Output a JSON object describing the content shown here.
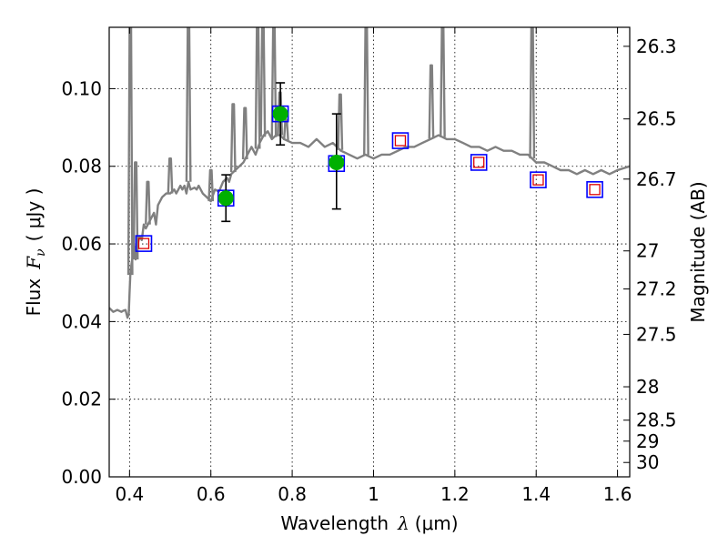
{
  "chart_data": {
    "type": "line",
    "title": "",
    "xlabel_text": "Wavelength",
    "xlabel_math": "λ",
    "xlabel_unit": "(μm)",
    "ylabel_text": "Flux",
    "ylabel_math": "F",
    "ylabel_sub": "ν",
    "ylabel_unit": "( μJy )",
    "y2label": "Magnitude (AB)",
    "xlim": [
      0.35,
      1.63
    ],
    "ylim": [
      0.0,
      0.1158
    ],
    "grid": true,
    "x_ticks": [
      {
        "value": 0.4,
        "label": "0.4"
      },
      {
        "value": 0.6,
        "label": "0.6"
      },
      {
        "value": 0.8,
        "label": "0.8"
      },
      {
        "value": 1.0,
        "label": "1"
      },
      {
        "value": 1.2,
        "label": "1.2"
      },
      {
        "value": 1.4,
        "label": "1.4"
      },
      {
        "value": 1.6,
        "label": "1.6"
      }
    ],
    "y_ticks": [
      {
        "value": 0.0,
        "label": "0.00"
      },
      {
        "value": 0.02,
        "label": "0.02"
      },
      {
        "value": 0.04,
        "label": "0.04"
      },
      {
        "value": 0.06,
        "label": "0.06"
      },
      {
        "value": 0.08,
        "label": "0.08"
      },
      {
        "value": 0.1,
        "label": "0.10"
      }
    ],
    "y2_ticks": [
      {
        "label": "26.3",
        "flux": 0.1109
      },
      {
        "label": "26.5",
        "flux": 0.0922
      },
      {
        "label": "26.7",
        "flux": 0.0767
      },
      {
        "label": "27",
        "flux": 0.0582
      },
      {
        "label": "27.2",
        "flux": 0.0484
      },
      {
        "label": "27.5",
        "flux": 0.0367
      },
      {
        "label": "28",
        "flux": 0.0232
      },
      {
        "label": "28.5",
        "flux": 0.0146
      },
      {
        "label": "29",
        "flux": 0.0092
      },
      {
        "label": "30",
        "flux": 0.0037
      }
    ],
    "series": [
      {
        "role": "sed-model",
        "color": "#808080",
        "x": [
          0.35,
          0.36,
          0.37,
          0.38,
          0.385,
          0.39,
          0.395,
          0.398,
          0.4,
          0.402,
          0.405,
          0.41,
          0.412,
          0.415,
          0.418,
          0.42,
          0.425,
          0.43,
          0.435,
          0.44,
          0.445,
          0.45,
          0.46,
          0.465,
          0.47,
          0.475,
          0.48,
          0.49,
          0.5,
          0.51,
          0.515,
          0.52,
          0.525,
          0.53,
          0.535,
          0.54,
          0.545,
          0.55,
          0.56,
          0.565,
          0.57,
          0.58,
          0.59,
          0.6,
          0.61,
          0.62,
          0.63,
          0.64,
          0.645,
          0.65,
          0.66,
          0.67,
          0.68,
          0.69,
          0.7,
          0.71,
          0.72,
          0.73,
          0.74,
          0.75,
          0.76,
          0.77,
          0.78,
          0.8,
          0.82,
          0.84,
          0.86,
          0.88,
          0.9,
          0.92,
          0.94,
          0.96,
          0.98,
          1.0,
          1.02,
          1.04,
          1.06,
          1.08,
          1.1,
          1.12,
          1.14,
          1.16,
          1.18,
          1.2,
          1.22,
          1.24,
          1.26,
          1.28,
          1.3,
          1.32,
          1.34,
          1.36,
          1.38,
          1.4,
          1.42,
          1.44,
          1.46,
          1.48,
          1.5,
          1.52,
          1.54,
          1.56,
          1.58,
          1.6,
          1.63
        ],
        "y": [
          0.0435,
          0.0425,
          0.043,
          0.0425,
          0.0428,
          0.043,
          0.041,
          0.042,
          0.047,
          0.052,
          0.055,
          0.058,
          0.0595,
          0.056,
          0.059,
          0.06,
          0.062,
          0.061,
          0.065,
          0.064,
          0.065,
          0.066,
          0.068,
          0.065,
          0.07,
          0.071,
          0.072,
          0.073,
          0.073,
          0.074,
          0.073,
          0.074,
          0.075,
          0.074,
          0.075,
          0.073,
          0.076,
          0.074,
          0.0745,
          0.074,
          0.075,
          0.073,
          0.072,
          0.071,
          0.074,
          0.0735,
          0.076,
          0.077,
          0.076,
          0.078,
          0.079,
          0.08,
          0.081,
          0.083,
          0.085,
          0.083,
          0.086,
          0.088,
          0.089,
          0.087,
          0.088,
          0.088,
          0.087,
          0.086,
          0.086,
          0.085,
          0.087,
          0.085,
          0.086,
          0.084,
          0.083,
          0.082,
          0.083,
          0.082,
          0.083,
          0.083,
          0.084,
          0.085,
          0.085,
          0.086,
          0.087,
          0.088,
          0.087,
          0.087,
          0.086,
          0.085,
          0.085,
          0.084,
          0.085,
          0.084,
          0.084,
          0.083,
          0.083,
          0.081,
          0.081,
          0.08,
          0.079,
          0.079,
          0.078,
          0.079,
          0.078,
          0.079,
          0.078,
          0.079,
          0.08
        ]
      },
      {
        "role": "emission-lines",
        "color": "#808080",
        "lines": [
          {
            "x": 0.402,
            "y": 0.1158
          },
          {
            "x": 0.415,
            "y": 0.081
          },
          {
            "x": 0.445,
            "y": 0.076
          },
          {
            "x": 0.5,
            "y": 0.082
          },
          {
            "x": 0.545,
            "y": 0.1158
          },
          {
            "x": 0.6,
            "y": 0.079
          },
          {
            "x": 0.655,
            "y": 0.096
          },
          {
            "x": 0.684,
            "y": 0.095
          },
          {
            "x": 0.715,
            "y": 0.1158
          },
          {
            "x": 0.728,
            "y": 0.1158
          },
          {
            "x": 0.755,
            "y": 0.1158
          },
          {
            "x": 0.77,
            "y": 0.099
          },
          {
            "x": 0.785,
            "y": 0.092
          },
          {
            "x": 0.918,
            "y": 0.0985
          },
          {
            "x": 0.982,
            "y": 0.1158
          },
          {
            "x": 1.142,
            "y": 0.106
          },
          {
            "x": 1.17,
            "y": 0.1158
          },
          {
            "x": 1.39,
            "y": 0.1158
          }
        ]
      },
      {
        "role": "model-photometry",
        "marker": "square",
        "color": "#0000ff",
        "x": [
          0.435,
          0.637,
          0.771,
          0.909,
          1.066,
          1.259,
          1.405,
          1.544
        ],
        "y": [
          0.0601,
          0.0718,
          0.0935,
          0.0807,
          0.0866,
          0.081,
          0.0765,
          0.074
        ]
      },
      {
        "role": "observed",
        "marker": "circle",
        "color": "#00b000",
        "x": [
          0.637,
          0.771,
          0.909
        ],
        "y": [
          0.0718,
          0.0935,
          0.081
        ],
        "err_lo": [
          0.006,
          0.008,
          0.012
        ],
        "err_hi": [
          0.006,
          0.008,
          0.0125
        ]
      },
      {
        "role": "upper-limit",
        "marker": "square",
        "color": "#dd0000",
        "x": [
          0.435,
          1.066,
          1.259,
          1.405,
          1.544
        ],
        "y": [
          0.0601,
          0.0866,
          0.081,
          0.0765,
          0.074
        ]
      }
    ]
  }
}
